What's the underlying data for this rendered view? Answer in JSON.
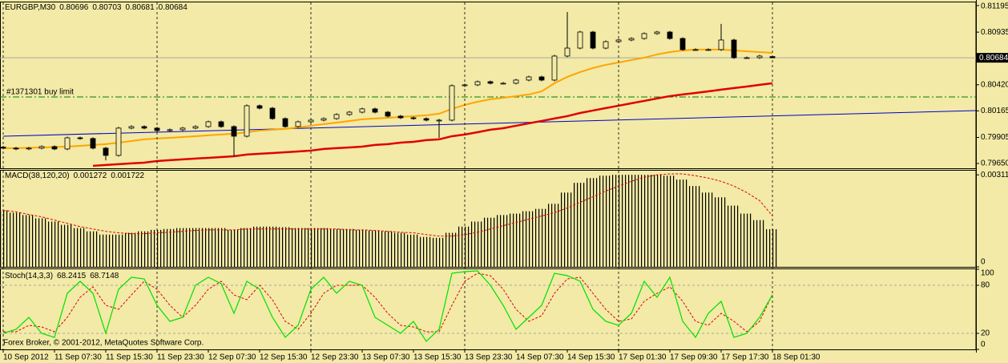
{
  "chart_data": [
    {
      "type": "candlestick",
      "title": "EURGBP,M30",
      "categories": [
        "10 Sep 2012",
        null,
        null,
        null,
        "11 Sep 07:30",
        null,
        null,
        null,
        "11 Sep 15:30",
        null,
        null,
        null,
        "11 Sep 23:30",
        null,
        null,
        null,
        "12 Sep 07:30",
        null,
        null,
        null,
        "12 Sep 15:30",
        null,
        null,
        null,
        "12 Sep 23:30",
        null,
        null,
        null,
        "13 Sep 07:30",
        null,
        null,
        null,
        "13 Sep 15:30",
        null,
        null,
        null,
        "13 Sep 23:30",
        null,
        null,
        null,
        "14 Sep 07:30",
        null,
        null,
        null,
        "14 Sep 15:30",
        null,
        null,
        null,
        "17 Sep 01:30",
        null,
        null,
        null,
        "17 Sep 09:30",
        null,
        null,
        null,
        "17 Sep 17:30",
        null,
        null,
        null,
        "18 Sep 01:30"
      ],
      "open": [
        0.7981,
        0.798,
        0.79792,
        0.798,
        0.79815,
        0.79792,
        0.79901,
        0.79894,
        0.798,
        0.79729,
        0.79996,
        0.80011,
        0.79996,
        0.79972,
        0.7998,
        0.79996,
        0.80011,
        0.80058,
        0.80011,
        0.79917,
        0.80215,
        0.80191,
        0.80089,
        0.80011,
        0.80058,
        0.80074,
        0.80089,
        0.80129,
        0.80152,
        0.80184,
        0.80152,
        0.80113,
        0.80097,
        0.80089,
        0.80074,
        0.80074,
        0.80411,
        0.80419,
        0.8045,
        0.80435,
        0.80435,
        0.80466,
        0.80497,
        0.80466,
        0.80701,
        0.80779,
        0.80936,
        0.80779,
        0.80842,
        0.80858,
        0.80873,
        0.80921,
        0.80936,
        0.80873,
        0.80764,
        0.80764,
        0.80764,
        0.80858,
        0.80685,
        0.80685,
        0.80696
      ],
      "high": [
        0.79822,
        0.79812,
        0.79812,
        0.79827,
        0.79827,
        0.79913,
        0.79913,
        0.79906,
        0.79812,
        0.80008,
        0.80023,
        0.80023,
        0.80008,
        0.79992,
        0.80008,
        0.80023,
        0.8007,
        0.8007,
        0.80023,
        0.80227,
        0.80227,
        0.80203,
        0.80101,
        0.8007,
        0.80086,
        0.80101,
        0.80141,
        0.80164,
        0.80196,
        0.80196,
        0.80164,
        0.80125,
        0.80109,
        0.80101,
        0.80086,
        0.80423,
        0.80431,
        0.80462,
        0.80462,
        0.80447,
        0.80478,
        0.80509,
        0.80509,
        0.80713,
        0.81132,
        0.80948,
        0.80948,
        0.80854,
        0.8087,
        0.80885,
        0.80933,
        0.80948,
        0.80948,
        0.80885,
        0.80776,
        0.80776,
        0.81015,
        0.8087,
        0.80697,
        0.80713,
        0.80703
      ],
      "low": [
        0.79788,
        0.7978,
        0.7978,
        0.79788,
        0.7978,
        0.7978,
        0.79882,
        0.79788,
        0.7968,
        0.79717,
        0.79984,
        0.79984,
        0.7996,
        0.7996,
        0.79968,
        0.79984,
        0.79999,
        0.79999,
        0.7972,
        0.79905,
        0.80179,
        0.80077,
        0.79999,
        0.79999,
        0.80046,
        0.80062,
        0.80077,
        0.80117,
        0.8014,
        0.8014,
        0.80101,
        0.80085,
        0.80077,
        0.80062,
        0.799,
        0.80062,
        0.80399,
        0.80407,
        0.80423,
        0.80423,
        0.80423,
        0.80454,
        0.80454,
        0.80454,
        0.80689,
        0.80767,
        0.80767,
        0.80767,
        0.8083,
        0.80846,
        0.80861,
        0.80909,
        0.80861,
        0.80752,
        0.80752,
        0.80752,
        0.80752,
        0.80673,
        0.80673,
        0.80673,
        0.80681
      ],
      "close": [
        0.798,
        0.79792,
        0.798,
        0.79815,
        0.79792,
        0.79901,
        0.79894,
        0.798,
        0.79729,
        0.79996,
        0.80011,
        0.79996,
        0.79972,
        0.7998,
        0.79996,
        0.80011,
        0.80058,
        0.80011,
        0.79917,
        0.80215,
        0.80191,
        0.80089,
        0.80011,
        0.80058,
        0.80074,
        0.80089,
        0.80129,
        0.80152,
        0.80184,
        0.80152,
        0.80113,
        0.80097,
        0.80089,
        0.80074,
        0.80074,
        0.80411,
        0.80419,
        0.8045,
        0.80435,
        0.80435,
        0.80466,
        0.80497,
        0.80466,
        0.80701,
        0.80779,
        0.80936,
        0.80779,
        0.80842,
        0.80858,
        0.80873,
        0.80921,
        0.80936,
        0.80873,
        0.80764,
        0.80764,
        0.80764,
        0.80858,
        0.80685,
        0.80685,
        0.80701,
        0.80684
      ],
      "series": [
        {
          "color": "#ffa500",
          "values": [
            0.798,
            0.798,
            0.79803,
            0.79807,
            0.79811,
            0.79815,
            0.79823,
            0.79831,
            0.79839,
            0.79854,
            0.7987,
            0.79886,
            0.79894,
            0.79901,
            0.79909,
            0.79917,
            0.79925,
            0.79933,
            0.79941,
            0.79956,
            0.79972,
            0.7998,
            0.79988,
            0.80003,
            0.80019,
            0.80035,
            0.8005,
            0.80066,
            0.80082,
            0.8009,
            0.80097,
            0.80105,
            0.80113,
            0.80121,
            0.80137,
            0.80184,
            0.80223,
            0.80254,
            0.80278,
            0.80293,
            0.80309,
            0.80325,
            0.80356,
            0.80435,
            0.80497,
            0.80544,
            0.80584,
            0.80615,
            0.80638,
            0.80662,
            0.80685,
            0.80717,
            0.8074,
            0.80756,
            0.80764,
            0.80764,
            0.80764,
            0.80756,
            0.80748,
            0.8074,
            0.80732
          ]
        },
        {
          "color": "#e00000",
          "values": [
            null,
            null,
            null,
            null,
            null,
            null,
            null,
            0.79627,
            0.79635,
            0.79643,
            0.79651,
            0.79658,
            0.79674,
            0.79682,
            0.7969,
            0.79698,
            0.79705,
            0.79713,
            0.79721,
            0.79737,
            0.79745,
            0.79752,
            0.7976,
            0.79768,
            0.79776,
            0.79792,
            0.798,
            0.79807,
            0.79815,
            0.79831,
            0.79839,
            0.79854,
            0.79862,
            0.79878,
            0.79886,
            0.79917,
            0.79933,
            0.79956,
            0.7998,
            0.79995,
            0.80019,
            0.80043,
            0.80066,
            0.8009,
            0.80113,
            0.80144,
            0.80168,
            0.80192,
            0.80215,
            0.80239,
            0.80262,
            0.80286,
            0.80309,
            0.80325,
            0.8034,
            0.80356,
            0.80372,
            0.80388,
            0.80403,
            0.80419,
            0.80435
          ]
        }
      ],
      "trendline": {
        "color": "#0000cc",
        "x": [
          0,
          76
        ],
        "values": [
          0.79917,
          0.80168
        ]
      },
      "order_line": {
        "label": "#1371301 buy limit",
        "value": 0.80301,
        "color": "#008000"
      },
      "bid": 0.80684,
      "ylim": [
        0.79603,
        0.81226
      ],
      "yticks": [
        {
          "value": 0.7965,
          "label": "0.79650"
        },
        0.79905,
        0.80165,
        {
          "value": 0.8042,
          "label": "0.80420"
        },
        0.80684,
        0.80935,
        0.81195
      ],
      "grid": true
    },
    {
      "type": "macd",
      "title": "MACD(38,120,20)",
      "color": "#000000",
      "values": [
        0.00191,
        0.00183,
        0.00175,
        0.00164,
        0.00153,
        0.00142,
        0.00131,
        0.0012,
        0.00109,
        0.00109,
        0.00115,
        0.0012,
        0.00125,
        0.00128,
        0.00131,
        0.00131,
        0.00131,
        0.00131,
        0.00125,
        0.00131,
        0.00136,
        0.00136,
        0.00134,
        0.00131,
        0.00131,
        0.00131,
        0.00128,
        0.00128,
        0.00125,
        0.00123,
        0.0012,
        0.00115,
        0.00109,
        0.00101,
        0.00098,
        0.00115,
        0.00136,
        0.00153,
        0.00166,
        0.00175,
        0.0018,
        0.00188,
        0.00196,
        0.00213,
        0.00251,
        0.00284,
        0.003,
        0.00308,
        0.00311,
        0.00311,
        0.00311,
        0.00311,
        0.00308,
        0.00295,
        0.00273,
        0.00251,
        0.00235,
        0.00207,
        0.0018,
        0.00158,
        0.001272
      ],
      "signal": {
        "color": "#e00000",
        "values": [
          0.00191,
          0.00186,
          0.00177,
          0.00169,
          0.00158,
          0.00147,
          0.00136,
          0.00128,
          0.0012,
          0.00115,
          0.00112,
          0.00112,
          0.00115,
          0.00117,
          0.0012,
          0.00123,
          0.00125,
          0.00125,
          0.00125,
          0.00128,
          0.00128,
          0.00128,
          0.00128,
          0.00128,
          0.00128,
          0.00128,
          0.00128,
          0.00125,
          0.00125,
          0.00123,
          0.0012,
          0.00117,
          0.00115,
          0.00109,
          0.00104,
          0.00104,
          0.00109,
          0.00117,
          0.00128,
          0.00139,
          0.0015,
          0.00161,
          0.00172,
          0.00183,
          0.00199,
          0.00218,
          0.00237,
          0.00256,
          0.00273,
          0.00289,
          0.00303,
          0.00311,
          0.00314,
          0.00314,
          0.00308,
          0.003,
          0.00289,
          0.00273,
          0.00251,
          0.00224,
          0.001722
        ]
      },
      "ylim": [
        0,
        0.00325
      ],
      "yticks": [
        0,
        0.00311
      ]
    },
    {
      "type": "stochastic",
      "title": "Stoch(14,3,3)",
      "main": {
        "color": "#00e000",
        "values": [
          20,
          25,
          40,
          20,
          15,
          70,
          85,
          70,
          20,
          75,
          90,
          88,
          55,
          35,
          40,
          80,
          90,
          82,
          45,
          85,
          75,
          40,
          15,
          30,
          75,
          90,
          70,
          85,
          80,
          40,
          30,
          20,
          35,
          10,
          25,
          95,
          97,
          98,
          80,
          55,
          25,
          40,
          55,
          95,
          92,
          85,
          50,
          35,
          30,
          45,
          85,
          65,
          90,
          35,
          15,
          45,
          60,
          15,
          20,
          40,
          68.2415
        ]
      },
      "signal": {
        "color": "#e00000",
        "values": [
          22,
          22,
          30,
          28,
          22,
          40,
          65,
          78,
          55,
          50,
          68,
          85,
          75,
          55,
          40,
          55,
          75,
          85,
          68,
          62,
          80,
          62,
          35,
          25,
          45,
          70,
          80,
          80,
          80,
          65,
          45,
          30,
          28,
          22,
          22,
          55,
          85,
          95,
          92,
          75,
          50,
          35,
          42,
          70,
          88,
          90,
          70,
          50,
          35,
          38,
          60,
          70,
          78,
          60,
          35,
          30,
          45,
          35,
          22,
          35,
          68.7148
        ]
      },
      "levels": [
        20,
        80
      ],
      "ylim": [
        0,
        100
      ],
      "yticks": [
        0,
        20,
        80,
        100
      ],
      "annotation": "Forex Broker, © 2001-2012, MetaQuotes Software Corp."
    }
  ]
}
